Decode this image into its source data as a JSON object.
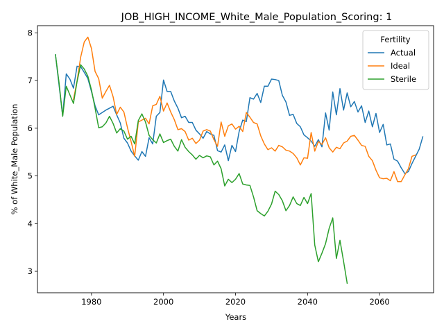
{
  "chart_data": {
    "type": "line",
    "title": "JOB_HIGH_INCOME_White_Male_Population_Scoring: 1",
    "xlabel": "Years",
    "ylabel": "% of White_Male Population",
    "xlim": [
      1965,
      2075
    ],
    "ylim": [
      2.55,
      8.15
    ],
    "xticks": [
      1980,
      2000,
      2020,
      2040,
      2060
    ],
    "yticks": [
      3,
      4,
      5,
      6,
      7,
      8
    ],
    "grid": false,
    "legend": {
      "title": "Fertility",
      "placement": "top-right"
    },
    "x_start": 1970,
    "x_step": 1,
    "series": [
      {
        "name": "Actual",
        "color": "#1f77b4",
        "values": [
          7.54,
          6.9,
          6.26,
          7.14,
          7.03,
          6.84,
          7.3,
          7.29,
          7.17,
          7.04,
          6.77,
          6.47,
          6.28,
          6.33,
          6.38,
          6.42,
          6.46,
          6.28,
          6.11,
          5.79,
          5.69,
          5.52,
          5.42,
          5.33,
          5.51,
          5.41,
          5.8,
          5.67,
          6.25,
          6.33,
          7.01,
          6.77,
          6.77,
          6.57,
          6.42,
          6.22,
          6.25,
          6.12,
          6.12,
          5.96,
          5.88,
          5.79,
          5.93,
          5.88,
          5.85,
          5.53,
          5.5,
          5.65,
          5.32,
          5.64,
          5.51,
          5.93,
          6.17,
          6.14,
          6.64,
          6.61,
          6.73,
          6.54,
          6.88,
          6.88,
          7.03,
          7.02,
          7.0,
          6.69,
          6.55,
          6.27,
          6.29,
          6.1,
          6.03,
          5.86,
          5.8,
          5.73,
          5.62,
          5.76,
          5.61,
          6.32,
          5.96,
          6.76,
          6.28,
          6.83,
          6.38,
          6.74,
          6.45,
          6.56,
          6.34,
          6.47,
          6.12,
          6.36,
          6.03,
          6.31,
          5.91,
          6.08,
          5.65,
          5.67,
          5.35,
          5.31,
          5.17,
          5.05,
          5.09,
          5.26,
          5.41,
          5.56,
          5.82
        ]
      },
      {
        "name": "Ideal",
        "color": "#ff7f0e",
        "values": [
          null,
          null,
          null,
          null,
          null,
          6.6,
          6.99,
          7.49,
          7.81,
          7.91,
          7.67,
          7.19,
          7.04,
          6.63,
          6.77,
          6.9,
          6.66,
          6.29,
          6.44,
          6.34,
          6.01,
          5.72,
          5.41,
          6.13,
          6.17,
          6.21,
          6.09,
          6.47,
          6.5,
          6.67,
          6.36,
          6.53,
          6.34,
          6.18,
          5.97,
          5.99,
          5.93,
          5.75,
          5.79,
          5.68,
          5.75,
          5.94,
          5.97,
          5.94,
          5.76,
          5.62,
          6.13,
          5.83,
          6.05,
          6.09,
          5.98,
          6.04,
          5.93,
          6.33,
          6.23,
          6.12,
          6.09,
          5.84,
          5.67,
          5.55,
          5.59,
          5.52,
          5.64,
          5.61,
          5.54,
          5.52,
          5.47,
          5.38,
          5.23,
          5.38,
          5.37,
          5.91,
          5.52,
          5.72,
          5.66,
          5.8,
          5.59,
          5.5,
          5.6,
          5.57,
          5.69,
          5.73,
          5.83,
          5.85,
          5.75,
          5.64,
          5.62,
          5.41,
          5.32,
          5.12,
          4.96,
          4.94,
          4.95,
          4.9,
          5.09,
          4.88,
          4.88,
          5.02,
          5.15,
          5.41,
          5.44
        ]
      },
      {
        "name": "Sterile",
        "color": "#2ca02c",
        "values": [
          7.54,
          6.95,
          6.25,
          6.88,
          6.7,
          6.52,
          6.98,
          7.33,
          7.24,
          7.09,
          6.8,
          6.42,
          6.01,
          6.03,
          6.11,
          6.25,
          6.1,
          5.9,
          5.99,
          5.94,
          5.77,
          5.83,
          5.67,
          6.16,
          6.3,
          6.13,
          5.85,
          5.76,
          5.69,
          5.88,
          5.7,
          5.74,
          5.77,
          5.62,
          5.52,
          5.76,
          5.6,
          5.51,
          5.44,
          5.35,
          5.43,
          5.38,
          5.42,
          5.4,
          5.23,
          5.31,
          5.15,
          4.79,
          4.93,
          4.86,
          4.93,
          5.05,
          4.83,
          4.81,
          4.8,
          4.56,
          4.27,
          4.21,
          4.16,
          4.26,
          4.41,
          4.68,
          4.61,
          4.48,
          4.27,
          4.38,
          4.56,
          4.42,
          4.38,
          4.55,
          4.42,
          4.63,
          3.55,
          3.2,
          3.38,
          3.58,
          3.9,
          4.12,
          3.27,
          3.65,
          3.21,
          2.75
        ]
      }
    ]
  }
}
